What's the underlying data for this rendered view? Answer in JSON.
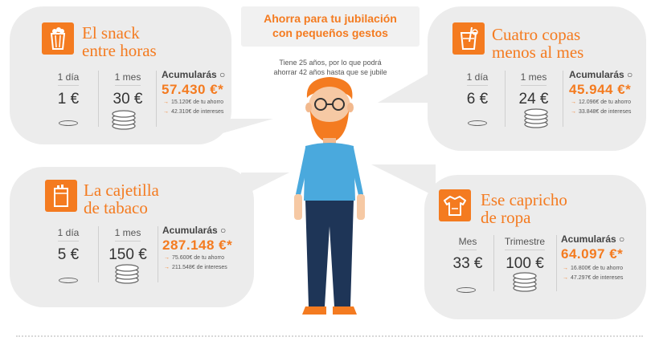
{
  "header": {
    "title_line1": "Ahorra para tu jubilación",
    "title_line2": "con pequeños gestos",
    "subtitle_line1": "Tiene 25 años, por lo que podrá",
    "subtitle_line2": "ahorrar 42 años hasta que se jubile"
  },
  "colors": {
    "accent": "#f47b20",
    "bubble": "#ececec",
    "shirt": "#4aa9dd",
    "hair": "#f47b20",
    "pants": "#1e3557"
  },
  "cards": {
    "snack": {
      "icon": "snack-icon",
      "title_line1": "El snack",
      "title_line2": "entre horas",
      "col1_label": "1 día",
      "col1_value": "1 €",
      "col2_label": "1 mes",
      "col2_value": "30 €",
      "acc_label": "Acumularás",
      "acc_value": "57.430 €*",
      "note1": "15.120€ de tu ahorro",
      "note2": "42.310€ de intereses"
    },
    "copas": {
      "icon": "drink-icon",
      "title_line1": "Cuatro copas",
      "title_line2": "menos al mes",
      "col1_label": "1 día",
      "col1_value": "6 €",
      "col2_label": "1 mes",
      "col2_value": "24 €",
      "acc_label": "Acumularás",
      "acc_value": "45.944 €*",
      "note1": "12.096€ de tu ahorro",
      "note2": "33.848€ de intereses"
    },
    "tabaco": {
      "icon": "cigarette-pack-icon",
      "title_line1": "La cajetilla",
      "title_line2": "de tabaco",
      "col1_label": "1 día",
      "col1_value": "5 €",
      "col2_label": "1 mes",
      "col2_value": "150 €",
      "acc_label": "Acumularás",
      "acc_value": "287.148 €*",
      "note1": "75.600€ de tu ahorro",
      "note2": "211.548€ de intereses"
    },
    "ropa": {
      "icon": "shirt-icon",
      "title_line1": "Ese capricho",
      "title_line2": "de ropa",
      "col1_label": "Mes",
      "col1_value": "33 €",
      "col2_label": "Trimestre",
      "col2_value": "100 €",
      "acc_label": "Acumularás",
      "acc_value": "64.097 €*",
      "note1": "16.800€ de tu ahorro",
      "note2": "47.297€ de intereses"
    }
  }
}
